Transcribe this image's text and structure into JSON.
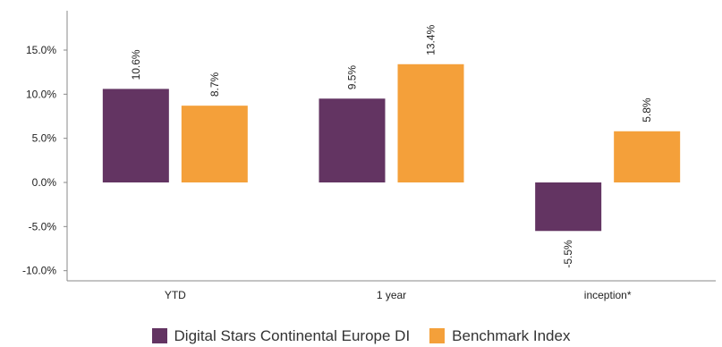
{
  "chart_data": {
    "type": "bar",
    "categories": [
      "YTD",
      "1 year",
      "inception*"
    ],
    "series": [
      {
        "name": "Digital Stars Continental Europe DI",
        "values": [
          10.6,
          9.5,
          -5.5
        ],
        "labels": [
          "10.6%",
          "9.5%",
          "-5.5%"
        ],
        "color": "#633462"
      },
      {
        "name": "Benchmark Index",
        "values": [
          8.7,
          13.4,
          5.8
        ],
        "labels": [
          "8.7%",
          "13.4%",
          "5.8%"
        ],
        "color": "#F4A03A"
      }
    ],
    "yticks": [
      15,
      10,
      5,
      0,
      -5,
      -10
    ],
    "ytick_labels": [
      "15.0%",
      "10.0%",
      "5.0%",
      "0.0%",
      "-5.0%",
      "-10.0%"
    ],
    "ylim": [
      -12,
      19.5
    ],
    "title": "",
    "xlabel": "",
    "ylabel": "",
    "grid": false,
    "legend_position": "bottom"
  },
  "legend": {
    "items": [
      {
        "label": "Digital Stars Continental Europe DI",
        "color": "#633462"
      },
      {
        "label": "Benchmark Index",
        "color": "#F4A03A"
      }
    ]
  }
}
